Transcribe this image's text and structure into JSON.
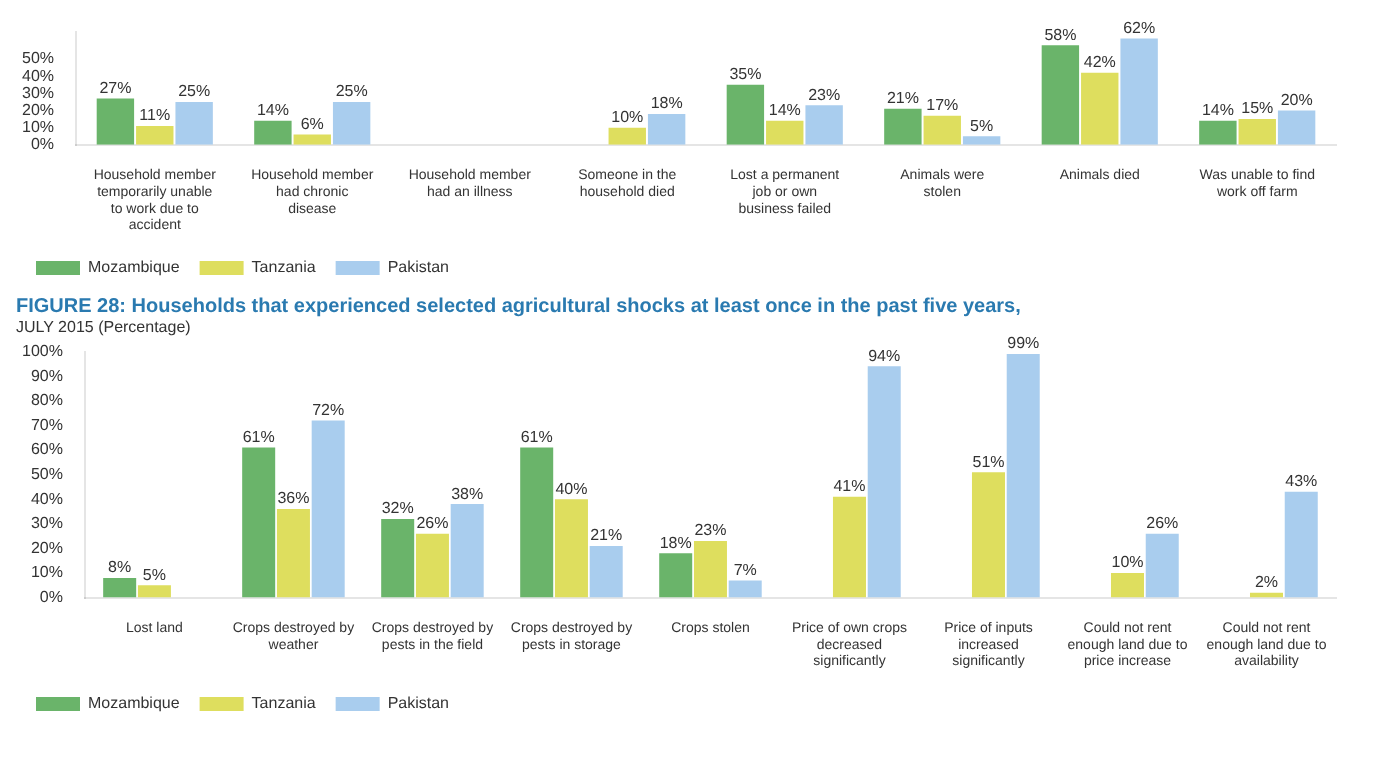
{
  "chart_data": [
    {
      "type": "bar",
      "categories": [
        "Household member temporarily unable to work due to accident",
        "Household member had chronic disease",
        "Household member had an illness",
        "Someone in the household died",
        "Lost a permanent job or own business failed",
        "Animals were stolen",
        "Animals died",
        "Was unable to find work off farm"
      ],
      "series": [
        {
          "name": "Mozambique",
          "color": "#6ab46a",
          "values": [
            27,
            14,
            null,
            null,
            35,
            21,
            58,
            14
          ],
          "value_labels": [
            "27%",
            "14%",
            null,
            null,
            "35%",
            "21%",
            "58%",
            "14%"
          ]
        },
        {
          "name": "Tanzania",
          "color": "#dede5e",
          "values": [
            11,
            6,
            null,
            10,
            14,
            17,
            42,
            15
          ],
          "value_labels": [
            "11%",
            "6%",
            null,
            "10%",
            "14%",
            "17%",
            "42%",
            "15%"
          ]
        },
        {
          "name": "Pakistan",
          "color": "#a9cdee",
          "values": [
            25,
            25,
            null,
            18,
            23,
            5,
            62,
            20
          ],
          "value_labels": [
            "25%",
            "25%",
            null,
            "18%",
            "23%",
            "5%",
            "62%",
            "20%"
          ]
        }
      ],
      "ylim": [
        0,
        66
      ],
      "yticks": [
        {
          "value": 0,
          "label": "0%"
        },
        {
          "value": 10,
          "label": "10%"
        },
        {
          "value": 20,
          "label": "20%"
        },
        {
          "value": 30,
          "label": "30%"
        },
        {
          "value": 40,
          "label": "40%"
        },
        {
          "value": 50,
          "label": "50%"
        }
      ],
      "legend": "bottom",
      "grid": false
    },
    {
      "type": "bar",
      "title": "FIGURE 28: Households that experienced selected agricultural shocks at least once in the past five years,",
      "subtitle": "JULY 2015 (Percentage)",
      "categories": [
        "Lost land",
        "Crops destroyed by weather",
        "Crops destroyed by pests in the field",
        "Crops destroyed by pests in storage",
        "Crops stolen",
        "Price of own crops decreased significantly",
        "Price of inputs increased significantly",
        "Could not rent enough land due to price increase",
        "Could not rent enough land due to availability"
      ],
      "series": [
        {
          "name": "Mozambique",
          "color": "#6ab46a",
          "values": [
            8,
            61,
            32,
            61,
            18,
            null,
            null,
            null,
            null
          ],
          "value_labels": [
            "8%",
            "61%",
            "32%",
            "61%",
            "18%",
            null,
            null,
            null,
            null
          ]
        },
        {
          "name": "Tanzania",
          "color": "#dede5e",
          "values": [
            5,
            36,
            26,
            40,
            23,
            41,
            51,
            10,
            2
          ],
          "value_labels": [
            "5%",
            "36%",
            "26%",
            "40%",
            "23%",
            "41%",
            "51%",
            "10%",
            "2%"
          ]
        },
        {
          "name": "Pakistan",
          "color": "#a9cdee",
          "values": [
            null,
            72,
            38,
            21,
            7,
            94,
            99,
            26,
            43
          ],
          "value_labels": [
            null,
            "72%",
            "38%",
            "21%",
            "7%",
            "94%",
            "99%",
            "26%",
            "43%"
          ]
        }
      ],
      "ylim": [
        0,
        100
      ],
      "yticks": [
        {
          "value": 0,
          "label": "0%"
        },
        {
          "value": 10,
          "label": "10%"
        },
        {
          "value": 20,
          "label": "20%"
        },
        {
          "value": 30,
          "label": "30%"
        },
        {
          "value": 40,
          "label": "40%"
        },
        {
          "value": 50,
          "label": "50%"
        },
        {
          "value": 60,
          "label": "60%"
        },
        {
          "value": 70,
          "label": "70%"
        },
        {
          "value": 80,
          "label": "80%"
        },
        {
          "value": 90,
          "label": "90%"
        },
        {
          "value": 100,
          "label": "100%"
        }
      ],
      "legend": "bottom",
      "grid": false
    }
  ]
}
